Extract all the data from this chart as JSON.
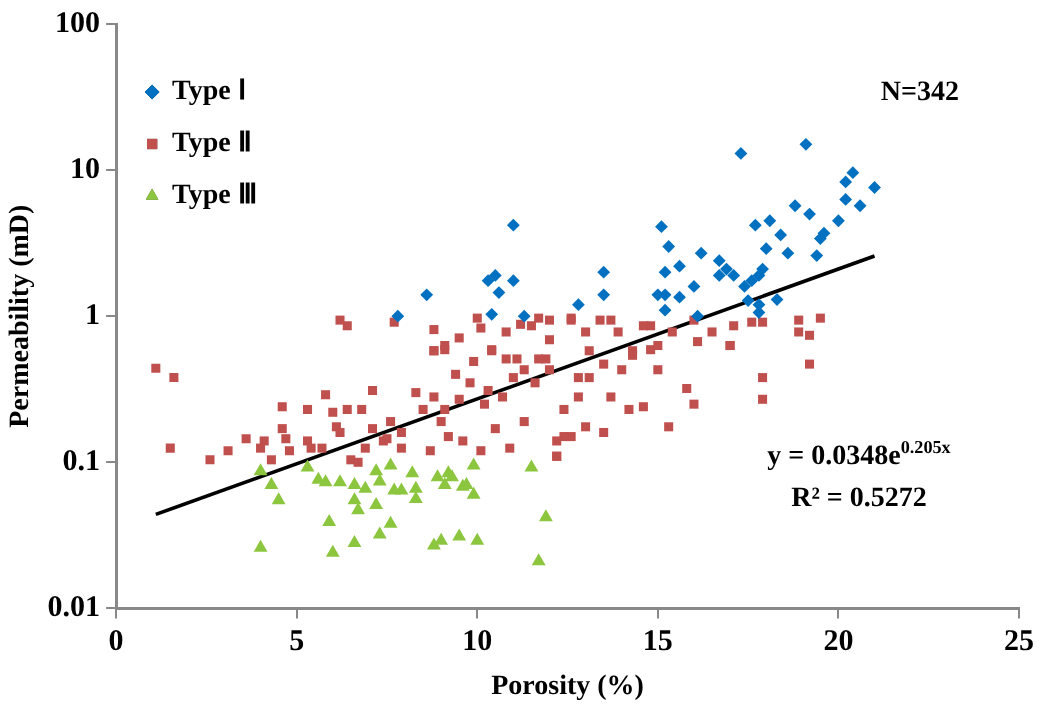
{
  "chart_data": {
    "type": "scatter",
    "xlabel": "Porosity (%)",
    "ylabel": "Permeability (mD)",
    "xlim": [
      0,
      25
    ],
    "xticks": [
      0,
      5,
      10,
      15,
      20,
      25
    ],
    "ylim": [
      0.01,
      100
    ],
    "yticks": [
      0.01,
      0.1,
      1,
      10,
      100
    ],
    "log": "y",
    "grid": false,
    "legend": "top left",
    "annotations": [
      "N=342",
      "y = 0.0348e$^{0.205x}$",
      "R² = 0.5272"
    ],
    "series": [
      {
        "name": "Type Ⅰ",
        "color": "#0070c0",
        "marker": "diamond",
        "x": [
          11.0,
          10.5,
          10.6,
          10.3,
          11.0,
          8.6,
          10.4,
          11.3,
          7.8,
          17.3,
          19.1,
          20.4,
          20.2,
          21.0,
          20.2,
          20.6,
          18.8,
          19.2,
          20.0,
          19.6,
          19.5,
          19.4,
          18.1,
          17.7,
          18.4,
          18.6,
          18.0,
          15.1,
          15.3,
          16.2,
          15.6,
          15.2,
          16.7,
          16.9,
          16.7,
          17.1,
          17.9,
          17.8,
          17.6,
          17.4,
          16.0,
          15.0,
          15.2,
          15.6,
          15.2,
          13.5,
          13.5,
          12.8,
          18.3,
          17.8,
          17.8,
          16.1,
          17.5
        ],
        "values": [
          4.2,
          1.9,
          1.45,
          1.75,
          1.75,
          1.4,
          1.03,
          1.0,
          1.0,
          13,
          15,
          9.6,
          8.3,
          7.6,
          6.3,
          5.7,
          5.7,
          5.0,
          4.5,
          3.7,
          3.4,
          2.6,
          4.5,
          4.2,
          3.6,
          2.7,
          2.9,
          4.1,
          3.0,
          2.7,
          2.2,
          2.0,
          2.4,
          2.1,
          1.9,
          1.9,
          2.1,
          1.9,
          1.75,
          1.6,
          1.6,
          1.4,
          1.4,
          1.35,
          1.1,
          2.0,
          1.4,
          1.2,
          1.3,
          1.2,
          1.06,
          1.0,
          1.28
        ]
      },
      {
        "name": "Type Ⅱ",
        "color": "#c0504d",
        "marker": "square",
        "x": [
          1.1,
          1.6,
          1.5,
          2.6,
          3.1,
          3.6,
          4.1,
          4.0,
          4.3,
          4.6,
          4.6,
          4.7,
          4.8,
          5.3,
          5.3,
          5.4,
          5.7,
          5.8,
          6.0,
          6.1,
          6.2,
          6.4,
          6.5,
          6.7,
          6.8,
          6.9,
          7.1,
          7.1,
          7.4,
          7.5,
          7.6,
          7.9,
          7.9,
          8.3,
          8.5,
          8.7,
          8.8,
          8.8,
          9.0,
          9.1,
          9.1,
          9.2,
          9.4,
          9.5,
          9.6,
          9.8,
          9.9,
          10.1,
          10.2,
          10.3,
          10.4,
          10.5,
          10.7,
          10.9,
          11.0,
          11.3,
          11.3,
          11.6,
          11.9,
          12.2,
          12.4,
          6.2,
          6.4,
          7.7,
          8.8,
          8.8,
          9.1,
          9.5,
          10.0,
          10.1,
          10.4,
          10.8,
          10.8,
          11.1,
          11.2,
          11.5,
          11.7,
          12.0,
          11.7,
          12.6,
          12.6,
          13.0,
          13.4,
          13.7,
          13.9,
          14.6,
          14.8,
          15.4,
          16.0,
          16.5,
          17.1,
          17.6,
          17.9,
          18.9,
          19.5,
          18.9,
          19.2,
          13.1,
          14.3,
          15.0,
          16.1,
          17.0,
          12.0,
          12.0,
          12.8,
          13.1,
          13.5,
          13.7,
          14.0,
          14.2,
          14.6,
          15.0,
          15.3,
          15.8,
          16.0,
          12.4,
          12.8,
          13.0,
          13.5,
          12.2,
          12.2,
          12.6,
          17.9,
          17.9,
          19.2,
          17.0,
          14.3,
          14.8
        ],
        "values": [
          0.44,
          0.38,
          0.125,
          0.104,
          0.12,
          0.145,
          0.14,
          0.125,
          0.104,
          0.24,
          0.17,
          0.145,
          0.12,
          0.23,
          0.14,
          0.125,
          0.125,
          0.29,
          0.22,
          0.175,
          0.16,
          0.23,
          0.104,
          0.1,
          0.23,
          0.125,
          0.31,
          0.17,
          0.14,
          0.145,
          0.19,
          0.16,
          0.125,
          0.3,
          0.23,
          0.12,
          0.58,
          0.28,
          0.19,
          0.63,
          0.23,
          0.15,
          0.4,
          0.27,
          0.14,
          0.35,
          0.49,
          0.12,
          0.25,
          0.31,
          0.59,
          0.17,
          0.28,
          0.125,
          0.38,
          0.43,
          0.19,
          0.35,
          0.51,
          0.11,
          0.15,
          0.94,
          0.86,
          0.91,
          0.81,
          0.58,
          0.59,
          0.71,
          0.97,
          0.83,
          0.58,
          0.78,
          0.51,
          0.51,
          0.88,
          0.86,
          0.97,
          0.94,
          0.51,
          0.97,
          0.94,
          0.78,
          0.94,
          0.94,
          0.78,
          0.86,
          0.86,
          0.78,
          0.94,
          0.78,
          0.86,
          0.91,
          0.91,
          0.94,
          0.97,
          0.78,
          0.74,
          0.58,
          0.58,
          0.63,
          0.67,
          0.63,
          0.69,
          0.43,
          0.38,
          0.38,
          0.47,
          0.28,
          0.43,
          0.23,
          0.24,
          0.43,
          0.175,
          0.32,
          0.25,
          0.23,
          0.28,
          0.175,
          0.16,
          0.14,
          0.11,
          0.15,
          0.38,
          0.27,
          0.47,
          0.63,
          0.54,
          0.59
        ]
      },
      {
        "name": "Type Ⅲ",
        "color": "#8cc63f",
        "marker": "triangle",
        "x": [
          4.0,
          4.3,
          4.0,
          4.5,
          5.3,
          5.6,
          5.8,
          6.2,
          5.9,
          6.0,
          6.6,
          6.6,
          6.7,
          6.6,
          6.9,
          7.2,
          7.3,
          7.2,
          7.3,
          7.6,
          7.6,
          7.7,
          8.2,
          8.3,
          8.3,
          7.9,
          8.8,
          9.0,
          8.9,
          9.1,
          9.2,
          9.3,
          9.6,
          9.7,
          9.9,
          9.9,
          9.5,
          10.0,
          11.5,
          11.9,
          11.7
        ],
        "values": [
          0.087,
          0.07,
          0.026,
          0.055,
          0.092,
          0.076,
          0.073,
          0.073,
          0.039,
          0.024,
          0.07,
          0.055,
          0.047,
          0.028,
          0.066,
          0.087,
          0.074,
          0.051,
          0.032,
          0.095,
          0.038,
          0.064,
          0.084,
          0.066,
          0.056,
          0.064,
          0.027,
          0.029,
          0.079,
          0.07,
          0.084,
          0.079,
          0.068,
          0.07,
          0.06,
          0.095,
          0.031,
          0.029,
          0.092,
          0.042,
          0.021
        ]
      },
      {
        "type": "line",
        "color": "#000000",
        "marker": "none",
        "x": [
          1.1,
          21
        ],
        "values": [
          0.044,
          2.58
        ]
      }
    ]
  }
}
